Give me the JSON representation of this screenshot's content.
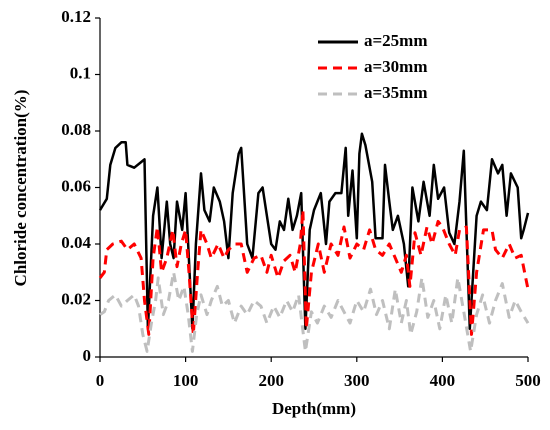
{
  "chart_data": {
    "type": "line",
    "xlabel": "Depth(mm)",
    "ylabel": "Chloride concentration(%)",
    "xlim": [
      0,
      500
    ],
    "xticks": [
      0,
      100,
      200,
      300,
      400,
      500
    ],
    "ylim": [
      0,
      0.12
    ],
    "yticks": [
      0,
      0.02,
      0.04,
      0.06,
      0.08,
      0.1,
      0.12
    ],
    "legend": "upper right",
    "series": [
      {
        "name": "a=25mm",
        "color": "#000000",
        "style": "solid",
        "x": [
          0,
          8,
          12,
          18,
          25,
          30,
          32,
          40,
          48,
          52,
          56,
          62,
          67,
          72,
          78,
          82,
          86,
          90,
          96,
          100,
          108,
          112,
          118,
          122,
          128,
          133,
          140,
          145,
          150,
          155,
          162,
          165,
          172,
          178,
          185,
          190,
          195,
          200,
          205,
          210,
          215,
          220,
          225,
          230,
          235,
          240,
          245,
          250,
          258,
          264,
          268,
          275,
          282,
          287,
          290,
          295,
          300,
          303,
          306,
          310,
          318,
          322,
          330,
          333,
          338,
          342,
          348,
          355,
          360,
          365,
          372,
          378,
          385,
          390,
          395,
          402,
          408,
          414,
          420,
          425,
          432,
          440,
          445,
          452,
          458,
          465,
          470,
          475,
          480,
          488,
          492,
          495,
          500
        ],
        "values": [
          0.052,
          0.056,
          0.068,
          0.074,
          0.076,
          0.076,
          0.068,
          0.067,
          0.069,
          0.07,
          0.01,
          0.05,
          0.06,
          0.035,
          0.055,
          0.04,
          0.035,
          0.055,
          0.045,
          0.058,
          0.01,
          0.04,
          0.065,
          0.052,
          0.048,
          0.06,
          0.055,
          0.048,
          0.035,
          0.058,
          0.072,
          0.074,
          0.04,
          0.035,
          0.058,
          0.06,
          0.05,
          0.04,
          0.038,
          0.048,
          0.045,
          0.056,
          0.045,
          0.05,
          0.058,
          0.01,
          0.045,
          0.052,
          0.058,
          0.04,
          0.055,
          0.058,
          0.058,
          0.074,
          0.05,
          0.066,
          0.042,
          0.072,
          0.079,
          0.075,
          0.062,
          0.042,
          0.042,
          0.068,
          0.055,
          0.045,
          0.05,
          0.04,
          0.025,
          0.06,
          0.048,
          0.062,
          0.05,
          0.068,
          0.056,
          0.06,
          0.044,
          0.04,
          0.055,
          0.073,
          0.01,
          0.05,
          0.055,
          0.052,
          0.07,
          0.065,
          0.068,
          0.05,
          0.065,
          0.06,
          0.042,
          0.045,
          0.051
        ]
      },
      {
        "name": "a=30mm",
        "color": "#ff0000",
        "style": "dashed",
        "x": [
          0,
          5,
          8,
          15,
          25,
          32,
          40,
          48,
          52,
          57,
          62,
          67,
          72,
          78,
          85,
          90,
          95,
          100,
          104,
          109,
          114,
          118,
          125,
          130,
          138,
          145,
          150,
          158,
          165,
          172,
          180,
          188,
          195,
          200,
          208,
          215,
          222,
          228,
          234,
          237,
          241,
          247,
          255,
          262,
          270,
          278,
          285,
          292,
          300,
          308,
          315,
          322,
          330,
          338,
          345,
          352,
          358,
          362,
          368,
          375,
          382,
          388,
          395,
          400,
          408,
          415,
          420,
          428,
          434,
          440,
          448,
          458,
          462,
          470,
          478,
          485,
          492,
          496,
          500
        ],
        "values": [
          0.028,
          0.03,
          0.038,
          0.04,
          0.041,
          0.038,
          0.04,
          0.035,
          0.02,
          0.008,
          0.035,
          0.046,
          0.03,
          0.035,
          0.045,
          0.032,
          0.04,
          0.045,
          0.03,
          0.008,
          0.03,
          0.045,
          0.04,
          0.035,
          0.04,
          0.035,
          0.038,
          0.04,
          0.04,
          0.03,
          0.035,
          0.036,
          0.03,
          0.036,
          0.028,
          0.034,
          0.036,
          0.03,
          0.04,
          0.052,
          0.01,
          0.03,
          0.04,
          0.03,
          0.04,
          0.036,
          0.046,
          0.035,
          0.04,
          0.038,
          0.045,
          0.038,
          0.036,
          0.04,
          0.035,
          0.03,
          0.036,
          0.025,
          0.044,
          0.036,
          0.046,
          0.04,
          0.048,
          0.046,
          0.04,
          0.036,
          0.045,
          0.046,
          0.008,
          0.03,
          0.045,
          0.045,
          0.038,
          0.035,
          0.04,
          0.035,
          0.036,
          0.03,
          0.024
        ]
      },
      {
        "name": "a=35mm",
        "color": "#bfbfbf",
        "style": "dashed",
        "x": [
          0,
          5,
          10,
          18,
          25,
          32,
          40,
          45,
          50,
          55,
          60,
          65,
          68,
          74,
          80,
          86,
          92,
          98,
          103,
          108,
          113,
          118,
          125,
          130,
          137,
          143,
          150,
          157,
          165,
          172,
          180,
          188,
          195,
          203,
          210,
          218,
          225,
          232,
          240,
          247,
          254,
          262,
          270,
          278,
          285,
          292,
          300,
          308,
          316,
          323,
          330,
          338,
          345,
          352,
          358,
          363,
          370,
          376,
          383,
          390,
          397,
          404,
          411,
          418,
          425,
          433,
          440,
          447,
          455,
          462,
          470,
          478,
          485,
          492,
          500
        ],
        "values": [
          0.015,
          0.016,
          0.02,
          0.022,
          0.018,
          0.02,
          0.022,
          0.018,
          0.008,
          0.002,
          0.012,
          0.02,
          0.028,
          0.015,
          0.02,
          0.03,
          0.02,
          0.025,
          0.015,
          0.002,
          0.015,
          0.022,
          0.015,
          0.02,
          0.025,
          0.018,
          0.02,
          0.012,
          0.018,
          0.015,
          0.02,
          0.018,
          0.012,
          0.018,
          0.014,
          0.02,
          0.016,
          0.022,
          0.002,
          0.016,
          0.012,
          0.018,
          0.014,
          0.02,
          0.016,
          0.012,
          0.02,
          0.016,
          0.024,
          0.015,
          0.02,
          0.01,
          0.024,
          0.012,
          0.02,
          0.008,
          0.016,
          0.028,
          0.014,
          0.02,
          0.01,
          0.022,
          0.012,
          0.028,
          0.016,
          0.002,
          0.015,
          0.022,
          0.012,
          0.02,
          0.026,
          0.014,
          0.02,
          0.016,
          0.012
        ]
      }
    ]
  }
}
